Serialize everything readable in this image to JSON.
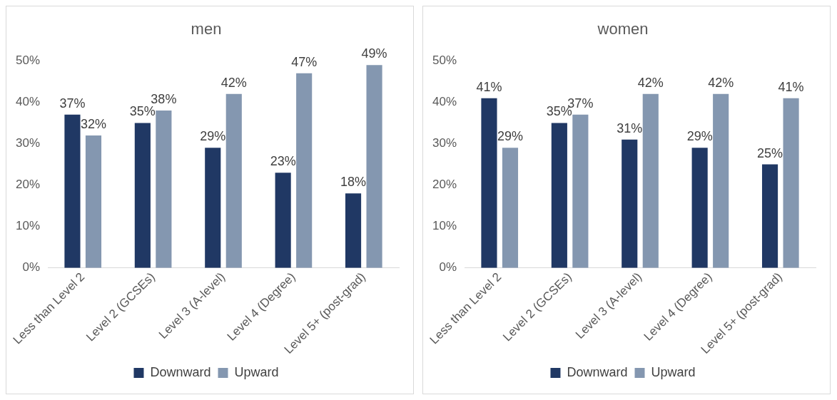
{
  "chart_data": [
    {
      "type": "bar",
      "title": "men",
      "categories": [
        "Less than Level 2",
        "Level 2 (GCSEs)",
        "Level 3 (A-level)",
        "Level 4 (Degree)",
        "Level 5+ (post-grad)"
      ],
      "series": [
        {
          "name": "Downward",
          "color": "#203864",
          "values": [
            37,
            35,
            29,
            23,
            18
          ],
          "value_labels": [
            "37%",
            "35%",
            "29%",
            "23%",
            "18%"
          ]
        },
        {
          "name": "Upward",
          "color": "#8497b0",
          "values": [
            32,
            38,
            42,
            47,
            49
          ],
          "value_labels": [
            "32%",
            "38%",
            "42%",
            "47%",
            "49%"
          ]
        }
      ],
      "ylim": [
        0,
        50
      ],
      "yticks": [
        {
          "value": 0,
          "label": "0%"
        },
        {
          "value": 10,
          "label": "10%"
        },
        {
          "value": 20,
          "label": "20%"
        },
        {
          "value": 30,
          "label": "30%"
        },
        {
          "value": 40,
          "label": "40%"
        },
        {
          "value": 50,
          "label": "50%"
        }
      ],
      "legend": "bottom"
    },
    {
      "type": "bar",
      "title": "women",
      "categories": [
        "Less than Level 2",
        "Level 2 (GCSEs)",
        "Level 3 (A-level)",
        "Level 4 (Degree)",
        "Level 5+ (post-grad)"
      ],
      "series": [
        {
          "name": "Downward",
          "color": "#203864",
          "values": [
            41,
            35,
            31,
            29,
            25
          ],
          "value_labels": [
            "41%",
            "35%",
            "31%",
            "29%",
            "25%"
          ]
        },
        {
          "name": "Upward",
          "color": "#8497b0",
          "values": [
            29,
            37,
            42,
            42,
            41
          ],
          "value_labels": [
            "29%",
            "37%",
            "42%",
            "42%",
            "41%"
          ]
        }
      ],
      "ylim": [
        0,
        50
      ],
      "yticks": [
        {
          "value": 0,
          "label": "0%"
        },
        {
          "value": 10,
          "label": "10%"
        },
        {
          "value": 20,
          "label": "20%"
        },
        {
          "value": 30,
          "label": "30%"
        },
        {
          "value": 40,
          "label": "40%"
        },
        {
          "value": 50,
          "label": "50%"
        }
      ],
      "legend": "bottom"
    }
  ]
}
